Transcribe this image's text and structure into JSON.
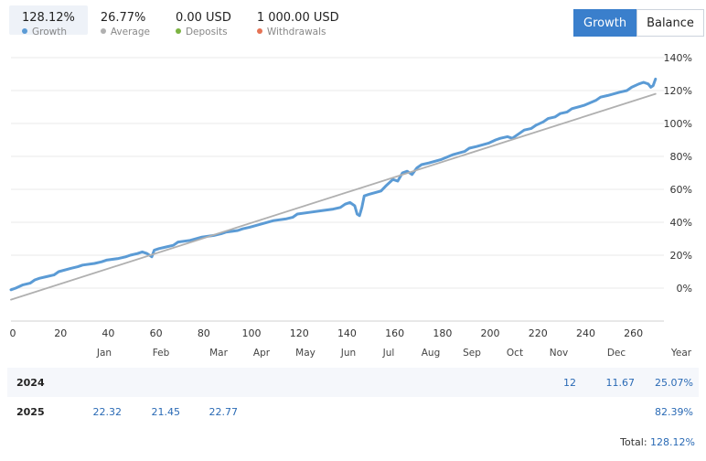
{
  "stats": [
    {
      "value": "128.12%",
      "label": "Growth",
      "color": "#5b9bd5",
      "active": true
    },
    {
      "value": "26.77%",
      "label": "Average",
      "color": "#b0b0b0",
      "active": false
    },
    {
      "value": "0.00 USD",
      "label": "Deposits",
      "color": "#7cb342",
      "active": false
    },
    {
      "value": "1 000.00 USD",
      "label": "Withdrawals",
      "color": "#e57355",
      "active": false
    }
  ],
  "toggle": {
    "growth_label": "Growth",
    "balance_label": "Balance"
  },
  "chart_data": {
    "type": "line",
    "xlim": [
      0,
      272
    ],
    "ylim": [
      -20,
      140
    ],
    "x_ticks": [
      0,
      20,
      40,
      60,
      80,
      100,
      120,
      140,
      160,
      180,
      200,
      220,
      240,
      260
    ],
    "y_ticks": [
      0,
      20,
      40,
      60,
      80,
      100,
      120,
      140
    ],
    "y_tick_suffix": "%",
    "grid": true,
    "series": [
      {
        "name": "Growth",
        "color": "#5b9bd5",
        "x": [
          0,
          2,
          5,
          8,
          10,
          12,
          15,
          18,
          20,
          25,
          28,
          30,
          35,
          38,
          40,
          45,
          48,
          50,
          53,
          55,
          57,
          59,
          60,
          62,
          65,
          68,
          70,
          75,
          80,
          85,
          88,
          90,
          95,
          97,
          100,
          105,
          110,
          115,
          118,
          120,
          125,
          130,
          135,
          138,
          140,
          142,
          144,
          145,
          146,
          147,
          148,
          150,
          155,
          157,
          160,
          162,
          164,
          166,
          168,
          170,
          172,
          175,
          180,
          185,
          190,
          192,
          195,
          200,
          203,
          205,
          208,
          210,
          213,
          215,
          218,
          220,
          223,
          225,
          228,
          230,
          233,
          235,
          240,
          245,
          247,
          250,
          255,
          258,
          260,
          263,
          265,
          267,
          268,
          269,
          270
        ],
        "y": [
          -1,
          0,
          2,
          3,
          5,
          6,
          7,
          8,
          10,
          12,
          13,
          14,
          15,
          16,
          17,
          18,
          19,
          20,
          21,
          22,
          21,
          19,
          23,
          24,
          25,
          26,
          28,
          29,
          31,
          32,
          33,
          34,
          35,
          36,
          37,
          39,
          41,
          42,
          43,
          45,
          46,
          47,
          48,
          49,
          51,
          52,
          50,
          45,
          44,
          49,
          56,
          57,
          59,
          62,
          66,
          65,
          70,
          71,
          69,
          73,
          75,
          76,
          78,
          81,
          83,
          85,
          86,
          88,
          90,
          91,
          92,
          91,
          94,
          96,
          97,
          99,
          101,
          103,
          104,
          106,
          107,
          109,
          111,
          114,
          116,
          117,
          119,
          120,
          122,
          124,
          125,
          124,
          122,
          123,
          127
        ]
      },
      {
        "name": "Average",
        "color": "#b0b0b0",
        "x": [
          0,
          270
        ],
        "y": [
          -7,
          118
        ]
      }
    ]
  },
  "months": [
    "Jan",
    "Feb",
    "Mar",
    "Apr",
    "May",
    "Jun",
    "Jul",
    "Aug",
    "Sep",
    "Oct",
    "Nov",
    "Dec",
    "Year"
  ],
  "returns": {
    "rows": [
      {
        "year": "2024",
        "values": [
          "",
          "",
          "",
          "",
          "",
          "",
          "",
          "",
          "",
          "",
          "12",
          "11.67"
        ],
        "total": "25.07%"
      },
      {
        "year": "2025",
        "values": [
          "22.32",
          "21.45",
          "22.77",
          "",
          "",
          "",
          "",
          "",
          "",
          "",
          "",
          ""
        ],
        "total": "82.39%"
      }
    ],
    "total_label": "Total:",
    "total_value": "128.12%"
  }
}
